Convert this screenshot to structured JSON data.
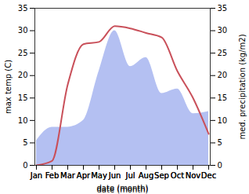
{
  "chart_data": {
    "type": "line",
    "x_label": "date (month)",
    "y_label": "max temp (C)",
    "y2_label": "med. precipitation (kg/m2)",
    "categories": [
      "Jan",
      "Feb",
      "Mar",
      "Apr",
      "May",
      "Jun",
      "Jul",
      "Aug",
      "Sep",
      "Oct",
      "Nov",
      "Dec"
    ],
    "series": [
      {
        "type": "area",
        "axis": "y2",
        "color": "#b4c0f2",
        "values": [
          5.5,
          8.5,
          8.5,
          10,
          21,
          30,
          22,
          24,
          16,
          17,
          11.5,
          12
        ]
      },
      {
        "type": "line",
        "axis": "y",
        "color": "#c9505a",
        "values": [
          0,
          1,
          18,
          27,
          27.5,
          31,
          30.5,
          29.5,
          28.5,
          21,
          15,
          7
        ]
      }
    ],
    "ylim": [
      0,
      35
    ],
    "yticks": [
      0,
      5,
      10,
      15,
      20,
      25,
      30,
      35
    ],
    "y2lim": [
      0,
      35
    ],
    "y2ticks": [
      0,
      5,
      10,
      15,
      20,
      25,
      30,
      35
    ]
  }
}
